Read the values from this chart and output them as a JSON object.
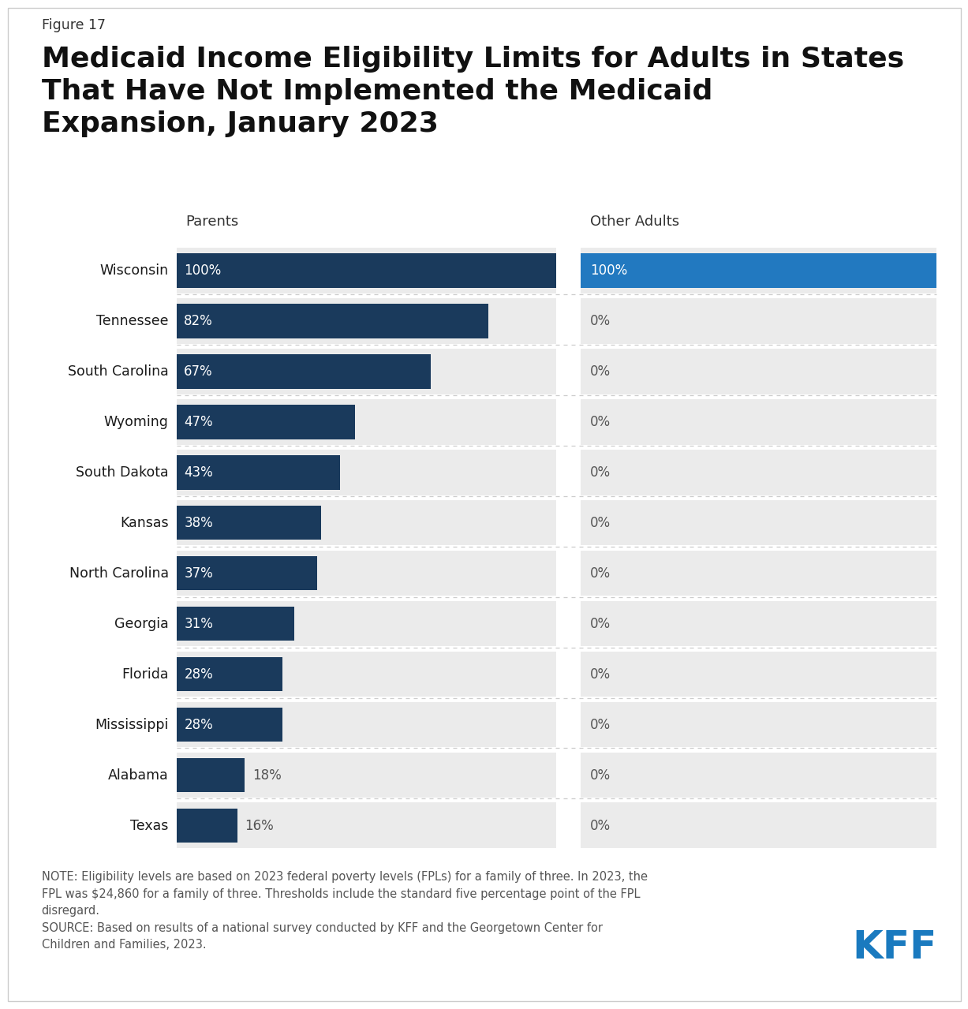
{
  "figure_label": "Figure 17",
  "title_line1": "Medicaid Income Eligibility Limits for Adults in States",
  "title_line2": "That Have Not Implemented the Medicaid",
  "title_line3": "Expansion, January 2023",
  "states": [
    "Wisconsin",
    "Tennessee",
    "South Carolina",
    "Wyoming",
    "South Dakota",
    "Kansas",
    "North Carolina",
    "Georgia",
    "Florida",
    "Mississippi",
    "Alabama",
    "Texas"
  ],
  "parents_values": [
    100,
    82,
    67,
    47,
    43,
    38,
    37,
    31,
    28,
    28,
    18,
    16
  ],
  "other_adults_values": [
    100,
    0,
    0,
    0,
    0,
    0,
    0,
    0,
    0,
    0,
    0,
    0
  ],
  "parents_label": "Parents",
  "other_adults_label": "Other Adults",
  "parents_bar_color": "#1a3a5c",
  "other_adults_bar_color": "#2279c0",
  "row_bg_color": "#ebebeb",
  "bar_text_color_inside": "#ffffff",
  "bar_text_color_outside": "#555555",
  "note_text1": "NOTE: Eligibility levels are based on 2023 federal poverty levels (FPLs) for a family of three. In 2023, the",
  "note_text2": "FPL was $24,860 for a family of three. Thresholds include the standard five percentage point of the FPL",
  "note_text3": "disregard.",
  "note_text4": "SOURCE: Based on results of a national survey conducted by KFF and the Georgetown Center for",
  "note_text5": "Children and Families, 2023.",
  "background_color": "#ffffff",
  "state_label_color": "#1a1a1a",
  "column_header_color": "#333333",
  "divider_color": "#cccccc",
  "kff_color": "#1a7abf",
  "outside_label_threshold": 18
}
